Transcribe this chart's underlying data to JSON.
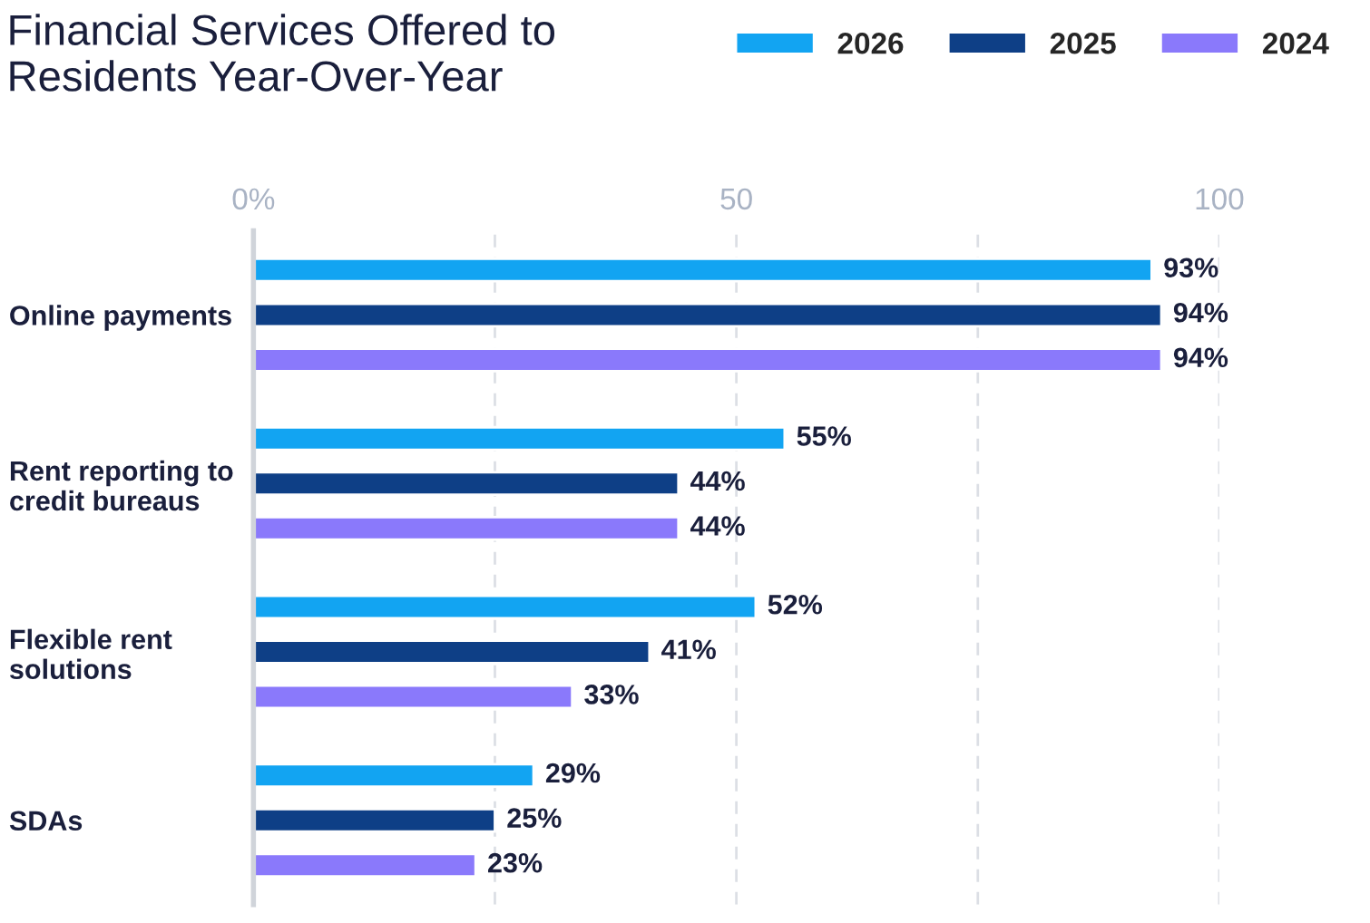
{
  "chart_data": {
    "type": "bar",
    "orientation": "horizontal",
    "title": "Financial Services Offered to\nResidents Year-Over-Year",
    "categories": [
      "Online payments",
      "Rent reporting to\ncredit bureaus",
      "Flexible rent\nsolutions",
      "SDAs"
    ],
    "series": [
      {
        "name": "2026",
        "color": "#12a4f2",
        "values": [
          93,
          55,
          52,
          29
        ],
        "value_labels": [
          "93%",
          "55%",
          "52%",
          "29%"
        ]
      },
      {
        "name": "2025",
        "color": "#0e3f86",
        "values": [
          94,
          44,
          41,
          25
        ],
        "value_labels": [
          "94%",
          "44%",
          "41%",
          "25%"
        ]
      },
      {
        "name": "2024",
        "color": "#8a79fb",
        "values": [
          94,
          44,
          33,
          23
        ],
        "value_labels": [
          "94%",
          "44%",
          "33%",
          "23%"
        ]
      }
    ],
    "xlim": [
      0,
      100
    ],
    "xticks": [
      {
        "value": 0,
        "label": "0%"
      },
      {
        "value": 25,
        "label": null
      },
      50,
      {
        "value": 75,
        "label": null
      },
      100
    ],
    "grid": "x",
    "legend": "top right"
  }
}
